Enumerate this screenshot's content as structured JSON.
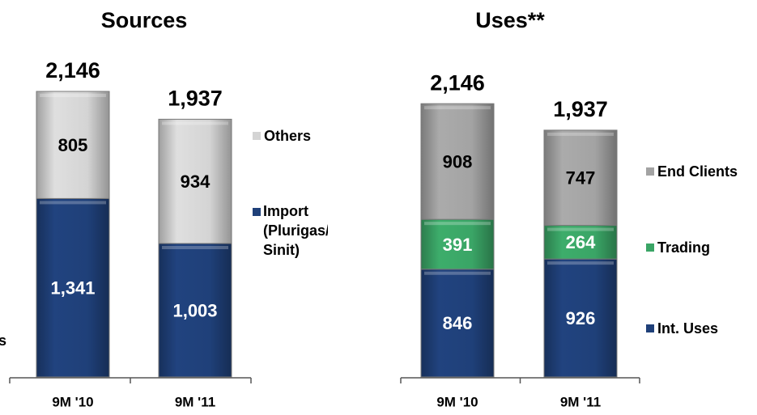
{
  "edge_text": "s",
  "chart_data": [
    {
      "type": "stacked_bar",
      "title": "Sources",
      "categories": [
        "9M '10",
        "9M '11"
      ],
      "totals": [
        2146,
        1937
      ],
      "total_labels": [
        "2,146",
        "1,937"
      ],
      "series": [
        {
          "name": "Import (Plurigas/ Sinit)",
          "color": "#1f4079",
          "values": [
            1341,
            1003
          ],
          "value_labels": [
            "1,341",
            "1,003"
          ]
        },
        {
          "name": "Others",
          "color": "#d4d4d4",
          "values": [
            805,
            934
          ]
        }
      ]
    },
    {
      "type": "stacked_bar",
      "title": "Uses**",
      "categories": [
        "9M '10",
        "9M '11"
      ],
      "totals": [
        2146,
        1937
      ],
      "total_labels": [
        "2,146",
        "1,937"
      ],
      "series": [
        {
          "name": "Int. Uses",
          "color": "#1f4079",
          "values": [
            846,
            926
          ]
        },
        {
          "name": "Trading",
          "color": "#3aa566",
          "values": [
            391,
            264
          ]
        },
        {
          "name": "End Clients",
          "color": "#a3a3a3",
          "values": [
            908,
            747
          ]
        }
      ]
    }
  ]
}
